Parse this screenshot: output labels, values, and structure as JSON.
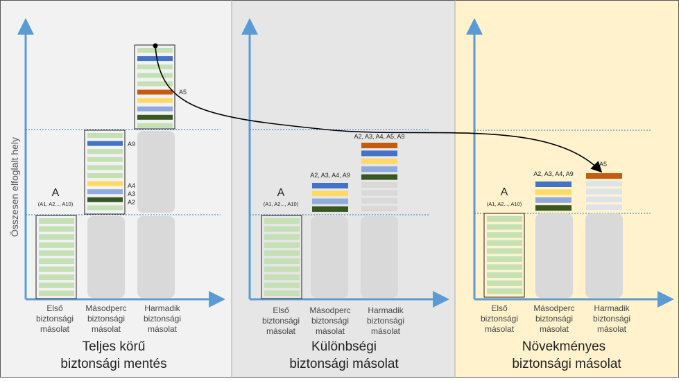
{
  "y_axis_label": "Összesen elfoglalt hely",
  "panels": [
    {
      "title_line1": "Teljes körű",
      "title_line2": "biztonsági mentés",
      "columns": [
        {
          "label": [
            "Első",
            "biztonsági",
            "másolat"
          ]
        },
        {
          "label": [
            "Másodperc",
            "biztonsági",
            "másolat"
          ]
        },
        {
          "label": [
            "Harmadik",
            "biztonsági",
            "másolat"
          ]
        }
      ],
      "first_backup_letter": "A",
      "first_backup_sub": "(A1, A2..., A10)",
      "second_backup_tags": [
        "A9",
        "A4",
        "A3",
        "A2"
      ],
      "third_backup_tag": "A5"
    },
    {
      "title_line1": "Különbségi",
      "title_line2": "biztonsági másolat",
      "columns": [
        {
          "label": [
            "Első",
            "biztonsági",
            "másolat"
          ]
        },
        {
          "label": [
            "Másodperc",
            "biztonsági",
            "másolat"
          ]
        },
        {
          "label": [
            "Harmadik",
            "biztonsági",
            "másolat"
          ]
        }
      ],
      "first_backup_letter": "A",
      "first_backup_sub": "(A1, A2..., A10)",
      "second_backup_caption": "A2, A3, A4, A9",
      "third_backup_caption": "A2, A3, A4, A5, A9"
    },
    {
      "title_line1": "Növekményes",
      "title_line2": "biztonsági másolat",
      "columns": [
        {
          "label": [
            "Első",
            "biztonsági",
            "másolat"
          ]
        },
        {
          "label": [
            "Másodperc",
            "biztonsági",
            "másolat"
          ]
        },
        {
          "label": [
            "Harmadik",
            "biztonsági",
            "másolat"
          ]
        }
      ],
      "first_backup_letter": "A",
      "first_backup_sub": "(A1, A2..., A10)",
      "second_backup_caption": "A2, A3, A4, A9",
      "third_backup_caption": "A5"
    }
  ],
  "colors": {
    "panel1_bg": "#f2f2f2",
    "panel2_bg": "#e6e6e6",
    "panel3_bg": "#fff2cc",
    "axis": "#5b9bd5",
    "light_green": "#c5e0b4",
    "blue": "#4472c4",
    "orange": "#c55a11",
    "yellow": "#ffd966",
    "periwinkle": "#8faadc",
    "dark_green": "#385723",
    "placeholder": "#d9d9d9",
    "dotted": "#2e75b6"
  }
}
